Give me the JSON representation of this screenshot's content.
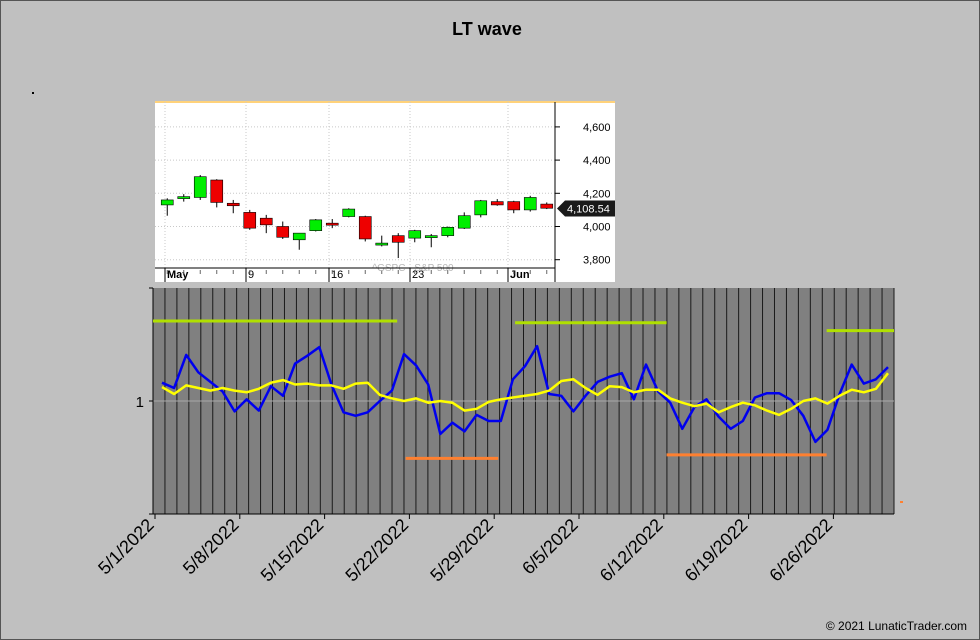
{
  "title": "LT wave",
  "copyright": "© 2021 LunaticTrader.com",
  "colors": {
    "background": "#c0c0c0",
    "wave": "#0000ee",
    "smooth": "#ffff00",
    "high_level": "#b0e000",
    "low_level": "#ff8030",
    "candle_up": "#00ee00",
    "candle_down": "#ee0000"
  },
  "chart_data": [
    {
      "type": "candlestick",
      "watermark": "^GSPC - S&P 500",
      "ylim": [
        3750,
        4750
      ],
      "y_ticks": [
        3800,
        4000,
        4200,
        4400,
        4600
      ],
      "y_tick_labels": [
        "3,800",
        "4,000",
        "4,200",
        "4,400",
        "4,600"
      ],
      "x_tick_labels": [
        "May",
        "9",
        "16",
        "23",
        "Jun"
      ],
      "last_value": 4108.54,
      "last_label": "4,108.54",
      "candles": [
        {
          "o": 4130,
          "h": 4170,
          "l": 4065,
          "c": 4160
        },
        {
          "o": 4170,
          "h": 4195,
          "l": 4150,
          "c": 4180
        },
        {
          "o": 4175,
          "h": 4310,
          "l": 4160,
          "c": 4300
        },
        {
          "o": 4280,
          "h": 4285,
          "l": 4115,
          "c": 4145
        },
        {
          "o": 4140,
          "h": 4160,
          "l": 4080,
          "c": 4125
        },
        {
          "o": 4085,
          "h": 4100,
          "l": 3980,
          "c": 3990
        },
        {
          "o": 4050,
          "h": 4070,
          "l": 3960,
          "c": 4010
        },
        {
          "o": 4000,
          "h": 4030,
          "l": 3925,
          "c": 3935
        },
        {
          "o": 3920,
          "h": 3960,
          "l": 3860,
          "c": 3960
        },
        {
          "o": 3975,
          "h": 4045,
          "l": 3970,
          "c": 4040
        },
        {
          "o": 4020,
          "h": 4045,
          "l": 3990,
          "c": 4010
        },
        {
          "o": 4060,
          "h": 4110,
          "l": 4055,
          "c": 4105
        },
        {
          "o": 4060,
          "h": 4065,
          "l": 3910,
          "c": 3925
        },
        {
          "o": 3895,
          "h": 3945,
          "l": 3880,
          "c": 3900
        },
        {
          "o": 3945,
          "h": 3960,
          "l": 3810,
          "c": 3905
        },
        {
          "o": 3930,
          "h": 3980,
          "l": 3905,
          "c": 3975
        },
        {
          "o": 3940,
          "h": 3955,
          "l": 3875,
          "c": 3945
        },
        {
          "o": 3945,
          "h": 4000,
          "l": 3935,
          "c": 3995
        },
        {
          "o": 3990,
          "h": 4085,
          "l": 3985,
          "c": 4065
        },
        {
          "o": 4070,
          "h": 4160,
          "l": 4055,
          "c": 4155
        },
        {
          "o": 4150,
          "h": 4165,
          "l": 4125,
          "c": 4130
        },
        {
          "o": 4150,
          "h": 4155,
          "l": 4080,
          "c": 4100
        },
        {
          "o": 4100,
          "h": 4185,
          "l": 4090,
          "c": 4175
        },
        {
          "o": 4135,
          "h": 4145,
          "l": 4105,
          "c": 4110
        }
      ]
    },
    {
      "type": "line",
      "y_tick_labels": [
        "1"
      ],
      "x_tick_labels": [
        "5/1/2022",
        "5/8/2022",
        "5/15/2022",
        "5/22/2022",
        "5/29/2022",
        "6/5/2022",
        "6/12/2022",
        "6/19/2022",
        "6/26/2022"
      ],
      "x_start": "2022-05-01",
      "ylim": [
        -1.3,
        1.3
      ],
      "reference": 0,
      "series": [
        {
          "values": [
            0.21,
            0.15,
            0.53,
            0.33,
            0.22,
            0.11,
            -0.12,
            0.02,
            -0.11,
            0.17,
            0.06,
            0.43,
            0.52,
            0.62,
            0.19,
            -0.13,
            -0.17,
            -0.13,
            0.0,
            0.12,
            0.54,
            0.41,
            0.19,
            -0.38,
            -0.25,
            -0.35,
            -0.16,
            -0.23,
            -0.23,
            0.25,
            0.4,
            0.63,
            0.08,
            0.06,
            -0.12,
            0.06,
            0.22,
            0.28,
            0.32,
            0.02,
            0.42,
            0.11,
            -0.02,
            -0.32,
            -0.07,
            0.02,
            -0.18,
            -0.32,
            -0.23,
            0.04,
            0.09,
            0.09,
            0.01,
            -0.17,
            -0.47,
            -0.33,
            0.08,
            0.42,
            0.2,
            0.25,
            0.39
          ]
        },
        {
          "values": [
            0.16,
            0.08,
            0.18,
            0.15,
            0.12,
            0.15,
            0.12,
            0.1,
            0.14,
            0.21,
            0.24,
            0.19,
            0.2,
            0.18,
            0.18,
            0.14,
            0.2,
            0.21,
            0.07,
            0.03,
            0.0,
            0.03,
            -0.02,
            0.0,
            -0.02,
            -0.11,
            -0.09,
            -0.01,
            0.02,
            0.04,
            0.06,
            0.08,
            0.12,
            0.23,
            0.25,
            0.15,
            0.07,
            0.17,
            0.16,
            0.1,
            0.13,
            0.13,
            0.03,
            -0.02,
            -0.06,
            -0.03,
            -0.13,
            -0.07,
            -0.02,
            -0.05,
            -0.11,
            -0.16,
            -0.09,
            0.0,
            0.03,
            -0.03,
            0.06,
            0.13,
            0.1,
            0.14,
            0.32
          ]
        }
      ],
      "levels": [
        {
          "value": 0.92,
          "from": 0,
          "to": 29
        },
        {
          "value": 0.9,
          "from": 43,
          "to": 61
        },
        {
          "value": 0.81,
          "from": 80,
          "to": 88
        },
        {
          "value": -0.66,
          "from": 30,
          "to": 41
        },
        {
          "value": -0.62,
          "from": 61,
          "to": 80
        }
      ]
    }
  ]
}
